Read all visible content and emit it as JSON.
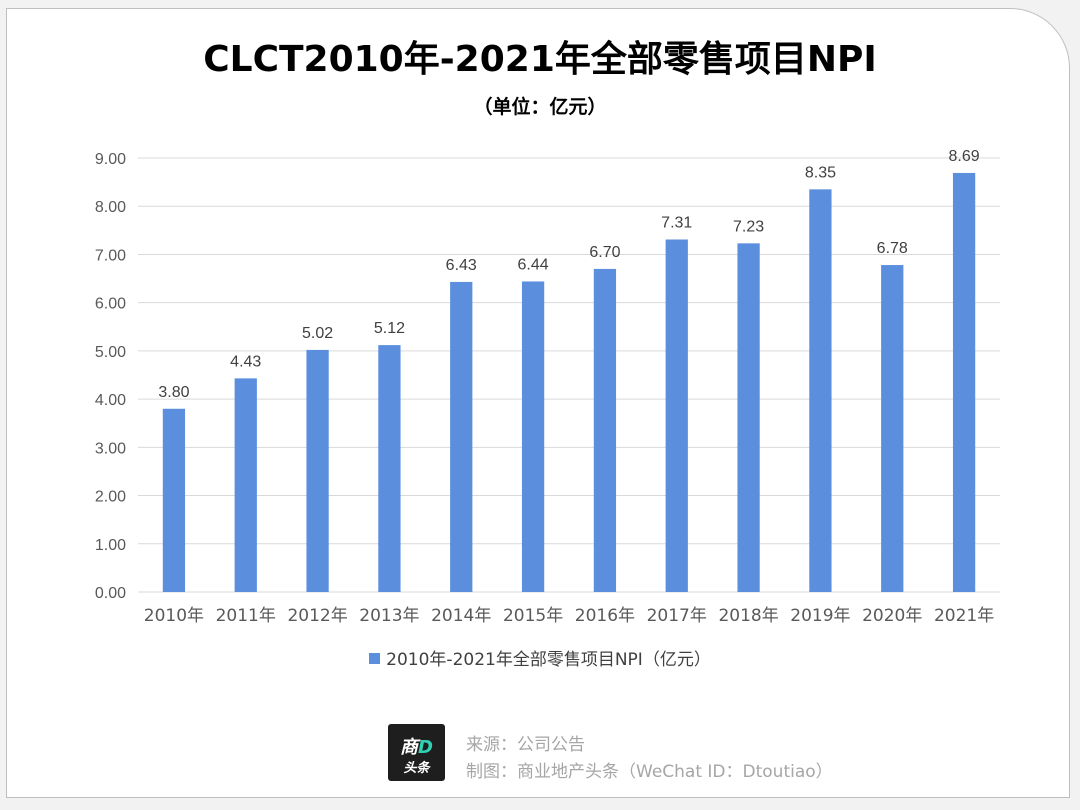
{
  "title": "CLCT2010年-2021年全部零售项目NPI",
  "subtitle": "（单位：亿元）",
  "colors": {
    "bar": "#5b8fde",
    "grid": "#d9d9d9",
    "axis_text": "#595959"
  },
  "chart_data": {
    "type": "bar",
    "categories": [
      "2010年",
      "2011年",
      "2012年",
      "2013年",
      "2014年",
      "2015年",
      "2016年",
      "2017年",
      "2018年",
      "2019年",
      "2020年",
      "2021年"
    ],
    "series": [
      {
        "name": "2010年-2021年全部零售项目NPI（亿元）",
        "values": [
          3.8,
          4.43,
          5.02,
          5.12,
          6.43,
          6.44,
          6.7,
          7.31,
          7.23,
          8.35,
          6.78,
          8.69
        ]
      }
    ],
    "value_labels": [
      "3.80",
      "4.43",
      "5.02",
      "5.12",
      "6.43",
      "6.44",
      "6.70",
      "7.31",
      "7.23",
      "8.35",
      "6.78",
      "8.69"
    ],
    "y_ticks": [
      "0.00",
      "1.00",
      "2.00",
      "3.00",
      "4.00",
      "5.00",
      "6.00",
      "7.00",
      "8.00",
      "9.00"
    ],
    "ylim": [
      0,
      9
    ],
    "grid": true,
    "legend_position": "bottom"
  },
  "legend": {
    "label": "2010年-2021年全部零售项目NPI（亿元）"
  },
  "footer": {
    "logo_line1_a": "商",
    "logo_line1_b": "D",
    "logo_line2": "头条",
    "source": "来源：公司公告",
    "credit": "制图：商业地产头条（WeChat ID：Dtoutiao）"
  }
}
